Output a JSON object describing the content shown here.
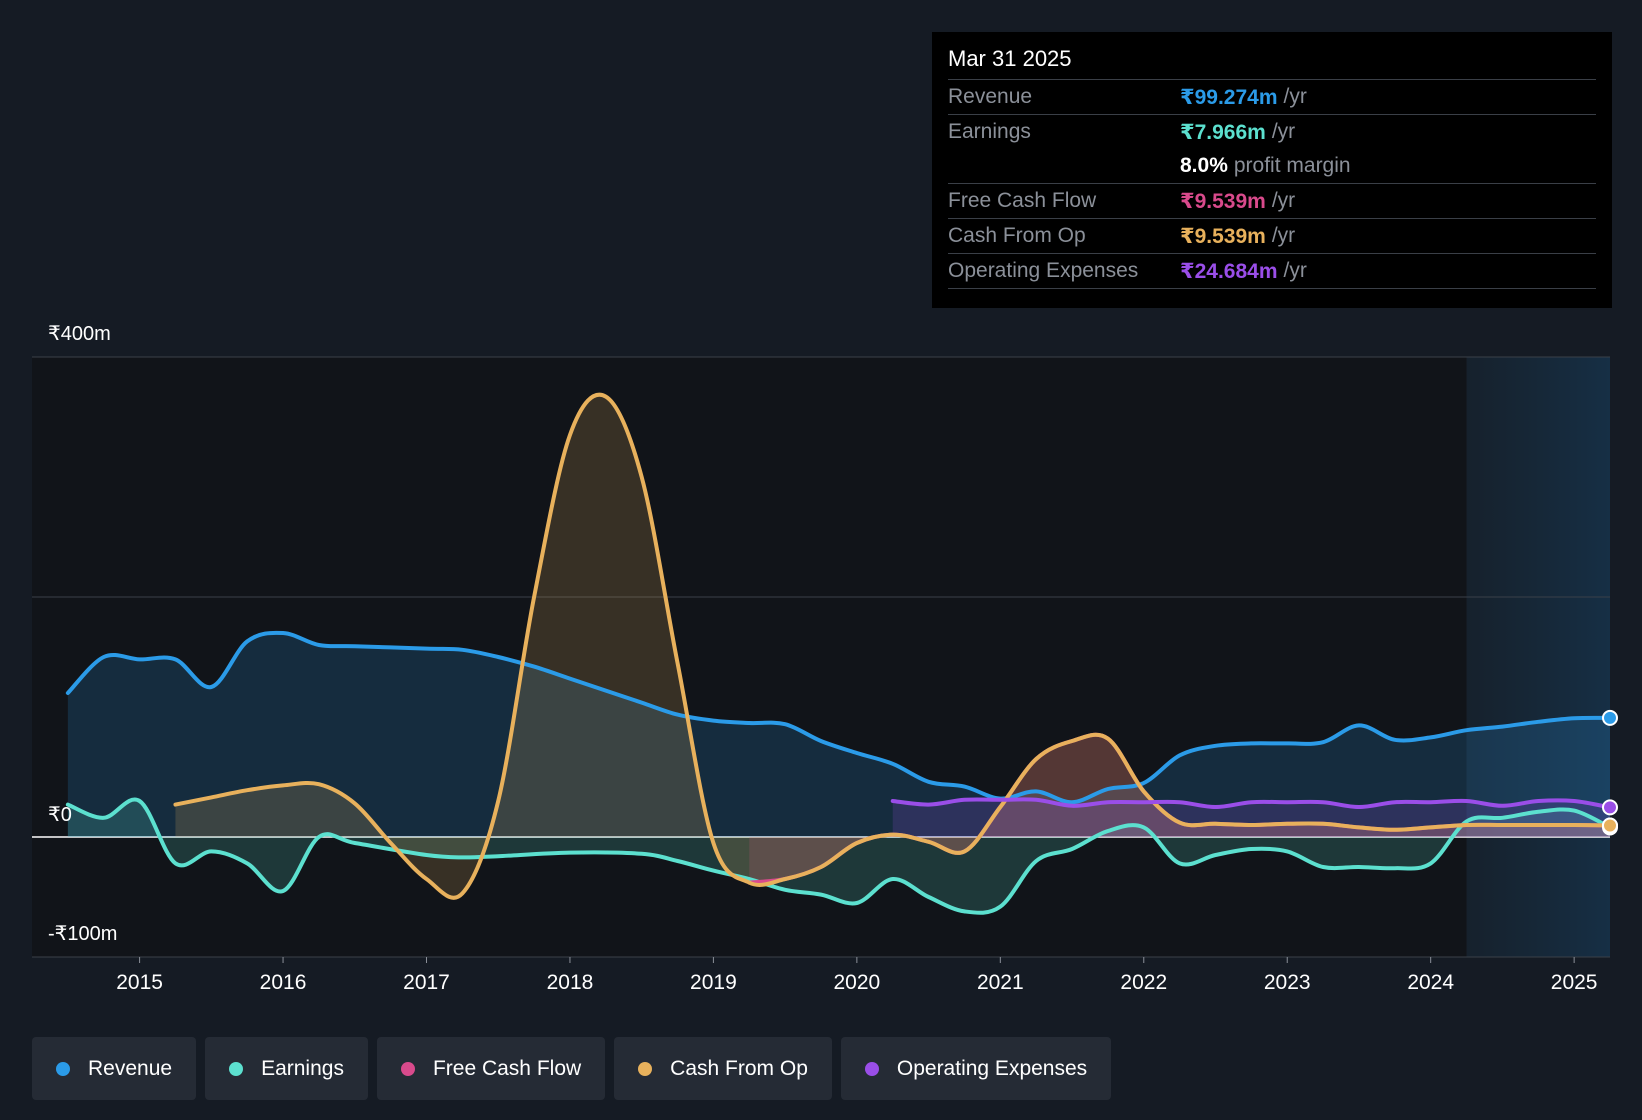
{
  "tooltip": {
    "date": "Mar 31 2025",
    "rows": [
      {
        "label": "Revenue",
        "value": "₹99.274m",
        "unit": "/yr",
        "color": "#2b9be8"
      },
      {
        "label": "Earnings",
        "value": "₹7.966m",
        "unit": "/yr",
        "color": "#5ce0cf"
      },
      {
        "label": "",
        "value": "8.0%",
        "unit": "profit margin",
        "color": "#ffffff"
      },
      {
        "label": "Free Cash Flow",
        "value": "₹9.539m",
        "unit": "/yr",
        "color": "#d94a8c"
      },
      {
        "label": "Cash From Op",
        "value": "₹9.539m",
        "unit": "/yr",
        "color": "#e8b15c"
      },
      {
        "label": "Operating Expenses",
        "value": "₹24.684m",
        "unit": "/yr",
        "color": "#9a4ee8"
      }
    ]
  },
  "chart_data": {
    "type": "line",
    "title": "",
    "xlabel": "",
    "ylabel": "",
    "currency_axis_labels": {
      "top": "₹400m",
      "zero": "₹0",
      "bottom": "-₹100m"
    },
    "xlim": [
      2014.25,
      2025.25
    ],
    "ylim": [
      -100,
      400
    ],
    "x_ticks": [
      2015,
      2016,
      2017,
      2018,
      2019,
      2020,
      2021,
      2022,
      2023,
      2024,
      2025
    ],
    "x_tick_labels": [
      "2015",
      "2016",
      "2017",
      "2018",
      "2019",
      "2020",
      "2021",
      "2022",
      "2023",
      "2024",
      "2025"
    ],
    "y_gridlines": [
      400,
      200,
      0,
      -100
    ],
    "forecast_shade_start": 2024.25,
    "series": [
      {
        "name": "Revenue",
        "color": "#2b9be8",
        "area": true,
        "points": [
          [
            2014.5,
            120
          ],
          [
            2014.75,
            150
          ],
          [
            2015.0,
            148
          ],
          [
            2015.25,
            148
          ],
          [
            2015.5,
            125
          ],
          [
            2015.75,
            163
          ],
          [
            2016.0,
            170
          ],
          [
            2016.25,
            160
          ],
          [
            2016.5,
            159
          ],
          [
            2017.0,
            157
          ],
          [
            2017.25,
            156
          ],
          [
            2017.5,
            150
          ],
          [
            2017.75,
            142
          ],
          [
            2018.0,
            132
          ],
          [
            2018.25,
            122
          ],
          [
            2018.5,
            112
          ],
          [
            2018.75,
            102
          ],
          [
            2019.0,
            97
          ],
          [
            2019.25,
            95
          ],
          [
            2019.5,
            94
          ],
          [
            2019.75,
            80
          ],
          [
            2020.0,
            70
          ],
          [
            2020.25,
            61
          ],
          [
            2020.5,
            46
          ],
          [
            2020.75,
            42
          ],
          [
            2021.0,
            32
          ],
          [
            2021.25,
            38
          ],
          [
            2021.5,
            29
          ],
          [
            2021.75,
            40
          ],
          [
            2022.0,
            45
          ],
          [
            2022.25,
            68
          ],
          [
            2022.5,
            76
          ],
          [
            2022.75,
            78
          ],
          [
            2023.0,
            78
          ],
          [
            2023.25,
            79
          ],
          [
            2023.5,
            93
          ],
          [
            2023.75,
            81
          ],
          [
            2024.0,
            83
          ],
          [
            2024.25,
            89
          ],
          [
            2024.5,
            92
          ],
          [
            2024.75,
            96
          ],
          [
            2025.0,
            99
          ],
          [
            2025.25,
            99.274
          ]
        ]
      },
      {
        "name": "Earnings",
        "color": "#5ce0cf",
        "area": true,
        "points": [
          [
            2014.5,
            27
          ],
          [
            2014.75,
            16
          ],
          [
            2015.0,
            30
          ],
          [
            2015.25,
            -22
          ],
          [
            2015.5,
            -12
          ],
          [
            2015.75,
            -22
          ],
          [
            2016.0,
            -45
          ],
          [
            2016.25,
            0
          ],
          [
            2016.5,
            -5
          ],
          [
            2017.0,
            -15
          ],
          [
            2017.25,
            -17
          ],
          [
            2017.5,
            -16
          ],
          [
            2018.0,
            -13
          ],
          [
            2018.5,
            -14
          ],
          [
            2018.75,
            -20
          ],
          [
            2019.0,
            -28
          ],
          [
            2019.25,
            -35
          ],
          [
            2019.5,
            -44
          ],
          [
            2019.75,
            -48
          ],
          [
            2020.0,
            -55
          ],
          [
            2020.25,
            -35
          ],
          [
            2020.5,
            -50
          ],
          [
            2020.75,
            -62
          ],
          [
            2021.0,
            -58
          ],
          [
            2021.25,
            -20
          ],
          [
            2021.5,
            -10
          ],
          [
            2021.75,
            5
          ],
          [
            2022.0,
            8
          ],
          [
            2022.25,
            -22
          ],
          [
            2022.5,
            -15
          ],
          [
            2022.75,
            -10
          ],
          [
            2023.0,
            -12
          ],
          [
            2023.25,
            -25
          ],
          [
            2023.5,
            -25
          ],
          [
            2023.75,
            -26
          ],
          [
            2024.0,
            -22
          ],
          [
            2024.25,
            13
          ],
          [
            2024.5,
            16
          ],
          [
            2024.75,
            21
          ],
          [
            2025.0,
            22
          ],
          [
            2025.25,
            7.966
          ]
        ]
      },
      {
        "name": "Free Cash Flow",
        "color": "#d94a8c",
        "area": true,
        "points": [
          [
            2019.25,
            -38
          ],
          [
            2019.5,
            -35
          ],
          [
            2019.75,
            -25
          ],
          [
            2020.0,
            -5
          ],
          [
            2020.25,
            2
          ],
          [
            2020.5,
            -4
          ],
          [
            2020.75,
            -12
          ],
          [
            2021.0,
            25
          ],
          [
            2021.25,
            65
          ],
          [
            2021.5,
            80
          ],
          [
            2021.75,
            82
          ],
          [
            2022.0,
            38
          ],
          [
            2022.25,
            12
          ],
          [
            2022.5,
            11
          ],
          [
            2022.75,
            10
          ],
          [
            2023.0,
            11
          ],
          [
            2023.25,
            11
          ],
          [
            2023.5,
            8
          ],
          [
            2023.75,
            6
          ],
          [
            2024.0,
            8
          ],
          [
            2024.25,
            10
          ],
          [
            2024.5,
            10
          ],
          [
            2024.75,
            10
          ],
          [
            2025.0,
            10
          ],
          [
            2025.25,
            9.539
          ]
        ]
      },
      {
        "name": "Cash From Op",
        "color": "#e8b15c",
        "area": true,
        "points": [
          [
            2015.25,
            27
          ],
          [
            2015.5,
            33
          ],
          [
            2015.75,
            39
          ],
          [
            2016.0,
            43
          ],
          [
            2016.25,
            44
          ],
          [
            2016.5,
            28
          ],
          [
            2016.75,
            -5
          ],
          [
            2017.0,
            -35
          ],
          [
            2017.25,
            -47
          ],
          [
            2017.5,
            30
          ],
          [
            2017.75,
            200
          ],
          [
            2018.0,
            335
          ],
          [
            2018.25,
            367
          ],
          [
            2018.5,
            300
          ],
          [
            2018.75,
            145
          ],
          [
            2019.0,
            -5
          ],
          [
            2019.25,
            -38
          ],
          [
            2019.5,
            -35
          ],
          [
            2019.75,
            -25
          ],
          [
            2020.0,
            -5
          ],
          [
            2020.25,
            2
          ],
          [
            2020.5,
            -4
          ],
          [
            2020.75,
            -12
          ],
          [
            2021.0,
            25
          ],
          [
            2021.25,
            65
          ],
          [
            2021.5,
            80
          ],
          [
            2021.75,
            82
          ],
          [
            2022.0,
            38
          ],
          [
            2022.25,
            12
          ],
          [
            2022.5,
            11
          ],
          [
            2022.75,
            10
          ],
          [
            2023.0,
            11
          ],
          [
            2023.25,
            11
          ],
          [
            2023.5,
            8
          ],
          [
            2023.75,
            6
          ],
          [
            2024.0,
            8
          ],
          [
            2024.25,
            10
          ],
          [
            2024.5,
            10
          ],
          [
            2024.75,
            10
          ],
          [
            2025.0,
            10
          ],
          [
            2025.25,
            9.539
          ]
        ]
      },
      {
        "name": "Operating Expenses",
        "color": "#9a4ee8",
        "area": true,
        "points": [
          [
            2020.25,
            30
          ],
          [
            2020.5,
            27
          ],
          [
            2020.75,
            31
          ],
          [
            2021.0,
            31
          ],
          [
            2021.25,
            31
          ],
          [
            2021.5,
            26
          ],
          [
            2021.75,
            29
          ],
          [
            2022.0,
            29
          ],
          [
            2022.25,
            29
          ],
          [
            2022.5,
            25
          ],
          [
            2022.75,
            29
          ],
          [
            2023.0,
            29
          ],
          [
            2023.25,
            29
          ],
          [
            2023.5,
            25
          ],
          [
            2023.75,
            29
          ],
          [
            2024.0,
            29
          ],
          [
            2024.25,
            30
          ],
          [
            2024.5,
            26
          ],
          [
            2024.75,
            30
          ],
          [
            2025.0,
            30
          ],
          [
            2025.25,
            24.684
          ]
        ]
      }
    ]
  },
  "legend": [
    {
      "label": "Revenue",
      "color": "#2b9be8"
    },
    {
      "label": "Earnings",
      "color": "#5ce0cf"
    },
    {
      "label": "Free Cash Flow",
      "color": "#d94a8c"
    },
    {
      "label": "Cash From Op",
      "color": "#e8b15c"
    },
    {
      "label": "Operating Expenses",
      "color": "#9a4ee8"
    }
  ]
}
